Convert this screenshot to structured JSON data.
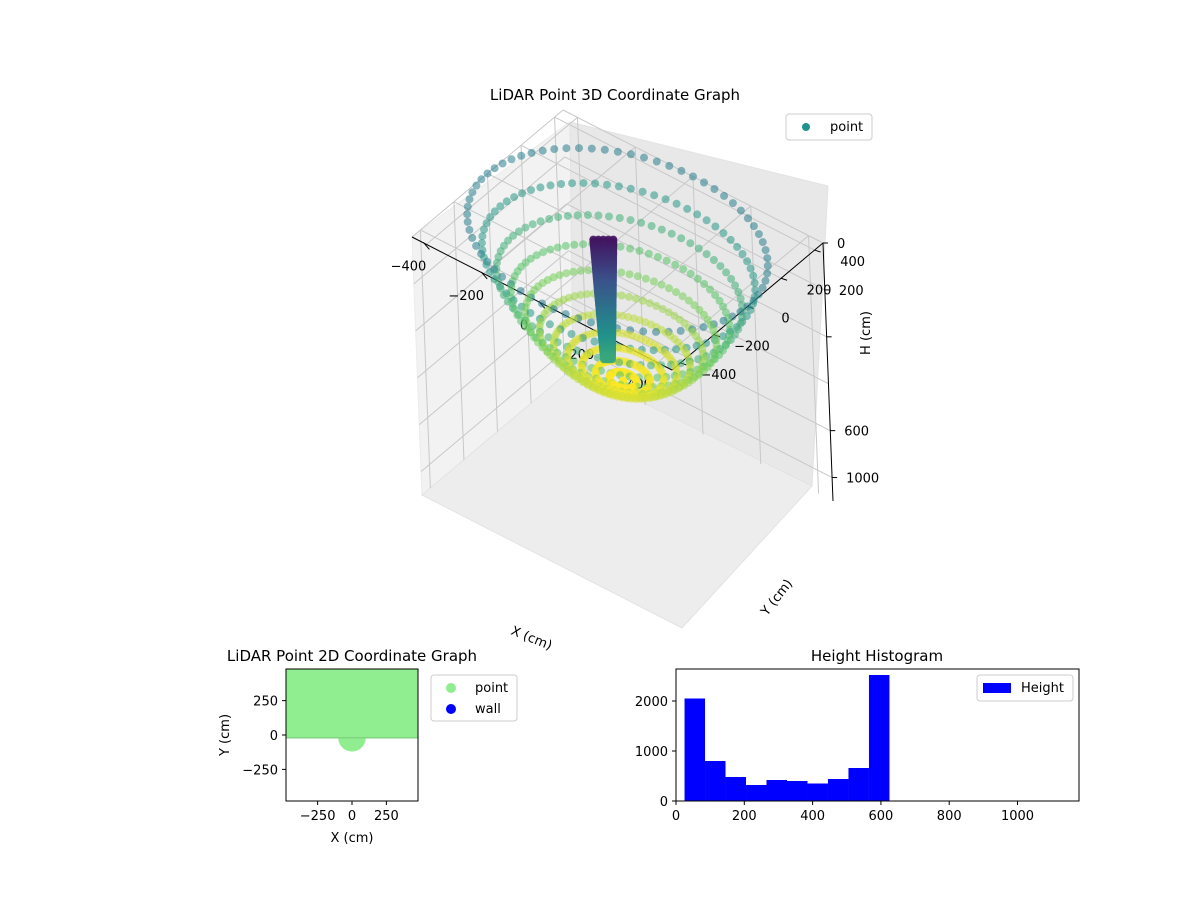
{
  "chart_data": [
    {
      "type": "scatter3d",
      "title": "LiDAR Point 3D Coordinate Graph",
      "xlabel": "X (cm)",
      "ylabel": "Y (cm)",
      "zlabel": "H (cm)",
      "x_ticks": [
        "−400",
        "−200",
        "0",
        "200",
        "400"
      ],
      "y_ticks": [
        "−400",
        "−200",
        "0",
        "200",
        "400"
      ],
      "z_ticks": [
        "0",
        "200",
        "",
        "600",
        "1000"
      ],
      "x_range": [
        -450,
        450
      ],
      "y_range": [
        -450,
        450
      ],
      "z_range": [
        0,
        1100
      ],
      "z_inverted": true,
      "grid": true,
      "legend": {
        "placement": "top-right",
        "entries": [
          {
            "label": "point",
            "color": "#21918c"
          }
        ]
      },
      "colormap": "viridis",
      "colormap_colors": [
        "#440154",
        "#3b528b",
        "#21918c",
        "#5ec962",
        "#fde725"
      ],
      "surface": {
        "radial_lines": 72,
        "rings": 11,
        "outer_radius": 450,
        "rim_height": 0,
        "bottom_height": 600,
        "wall_x": 450
      },
      "central_column": {
        "x": -50,
        "y": 0,
        "height_top": 30,
        "height_bottom": 540
      }
    },
    {
      "type": "scatter",
      "title": "LiDAR Point 2D Coordinate Graph",
      "xlabel": "X (cm)",
      "ylabel": "Y (cm)",
      "x_ticks": [
        -250,
        0,
        250
      ],
      "y_ticks": [
        -250,
        0,
        250
      ],
      "xlim": [
        -480,
        480
      ],
      "ylim": [
        -480,
        480
      ],
      "fill_region": {
        "y_min": -20,
        "y_max": 480,
        "semicircle_center": [
          0,
          -20
        ],
        "semicircle_radius": 100
      },
      "legend": {
        "placement": "outside-right",
        "entries": [
          {
            "label": "point",
            "color": "#90ee90"
          },
          {
            "label": "wall",
            "color": "#0000ff"
          }
        ]
      }
    },
    {
      "type": "bar",
      "title": "Height Histogram",
      "bin_edges": [
        25,
        85,
        145,
        205,
        265,
        325,
        385,
        445,
        505,
        565,
        625
      ],
      "values": [
        2050,
        800,
        480,
        320,
        420,
        400,
        350,
        440,
        660,
        2520
      ],
      "bar_color": "#0000ff",
      "xlim": [
        0,
        1180
      ],
      "ylim": [
        0,
        2640
      ],
      "x_ticks": [
        0,
        200,
        400,
        600,
        800,
        1000
      ],
      "y_ticks": [
        0,
        1000,
        2000
      ],
      "legend": {
        "placement": "top-right",
        "entries": [
          {
            "label": "Height",
            "color": "#0000ff"
          }
        ]
      }
    }
  ]
}
